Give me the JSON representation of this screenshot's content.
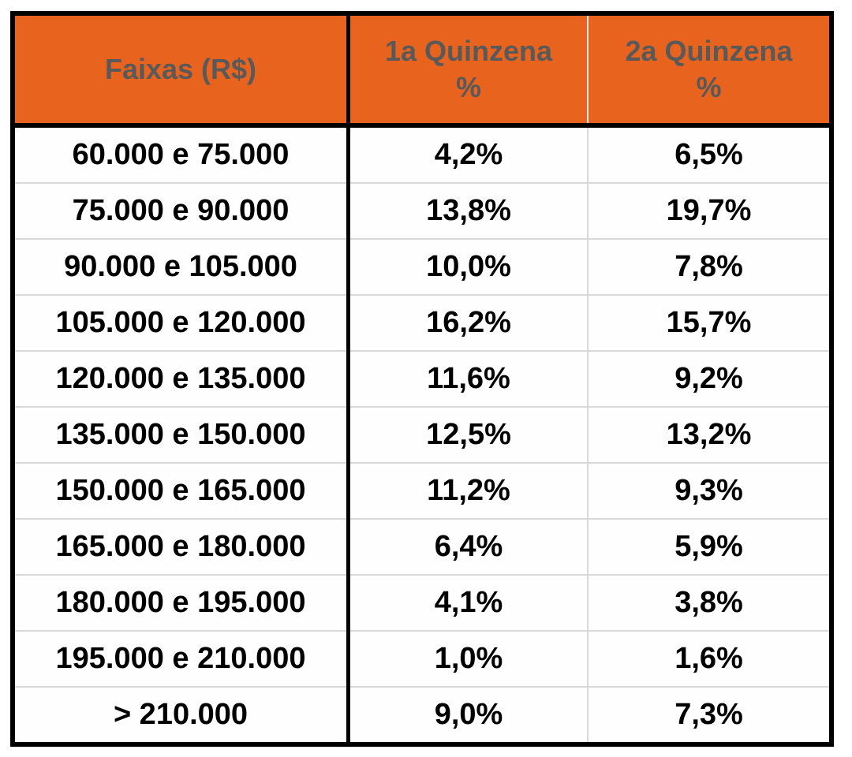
{
  "colors": {
    "header_bg": "#E8631E",
    "header_text": "#595959",
    "body_text": "#000000",
    "grid_line": "#D8D8D8",
    "outer_border": "#000000",
    "cell_bg": "#FEFEFE"
  },
  "header": {
    "col1": "Faixas (R$)",
    "col2_line1": "1a Quinzena",
    "col2_line2": "%",
    "col3_line1": "2a Quinzena",
    "col3_line2": "%"
  },
  "chart_data": {
    "type": "table",
    "columns": [
      "Faixas (R$)",
      "1a Quinzena %",
      "2a Quinzena %"
    ],
    "rows": [
      [
        "60.000 e 75.000",
        "4,2%",
        "6,5%"
      ],
      [
        "75.000 e 90.000",
        "13,8%",
        "19,7%"
      ],
      [
        "90.000 e 105.000",
        "10,0%",
        "7,8%"
      ],
      [
        "105.000 e 120.000",
        "16,2%",
        "15,7%"
      ],
      [
        "120.000 e 135.000",
        "11,6%",
        "9,2%"
      ],
      [
        "135.000 e 150.000",
        "12,5%",
        "13,2%"
      ],
      [
        "150.000 e 165.000",
        "11,2%",
        "9,3%"
      ],
      [
        "165.000 e 180.000",
        "6,4%",
        "5,9%"
      ],
      [
        "180.000 e 195.000",
        "4,1%",
        "3,8%"
      ],
      [
        "195.000 e 210.000",
        "1,0%",
        "1,6%"
      ],
      [
        "> 210.000",
        "9,0%",
        "7,3%"
      ]
    ]
  }
}
